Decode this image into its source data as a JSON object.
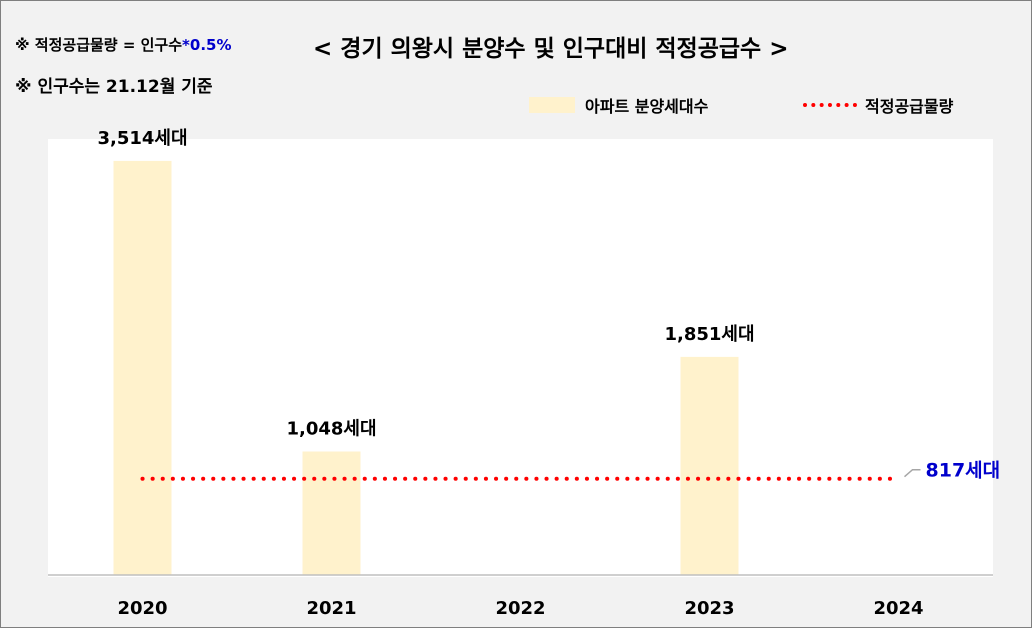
{
  "notes": {
    "formula_prefix": "※ 적정공급물량 = 인구수",
    "formula_factor": "*0.5%",
    "population_basis": "※ 인구수는 21.12월 기준"
  },
  "title": "< 경기 의왕시 분양수 및 인구대비 적정공급수 >",
  "legend": {
    "bar_label": "아파트 분양세대수",
    "line_label": "적정공급물량"
  },
  "colors": {
    "bar": "#fff2cc",
    "line": "#ff0000",
    "line_label": "#0000cc",
    "axis": "#bfbfbf"
  },
  "chart_data": {
    "type": "bar",
    "categories": [
      "2020",
      "2021",
      "2022",
      "2023",
      "2024"
    ],
    "series": [
      {
        "name": "아파트 분양세대수",
        "type": "bar",
        "values": [
          3514,
          1048,
          null,
          1851,
          null
        ],
        "data_labels": [
          "3,514세대",
          "1,048세대",
          "",
          "1,851세대",
          ""
        ]
      },
      {
        "name": "적정공급물량",
        "type": "line",
        "style": "dotted",
        "value": 817,
        "data_label": "817세대"
      }
    ],
    "ylim": [
      0,
      3700
    ],
    "grid": false,
    "legend_position": "top-right"
  }
}
